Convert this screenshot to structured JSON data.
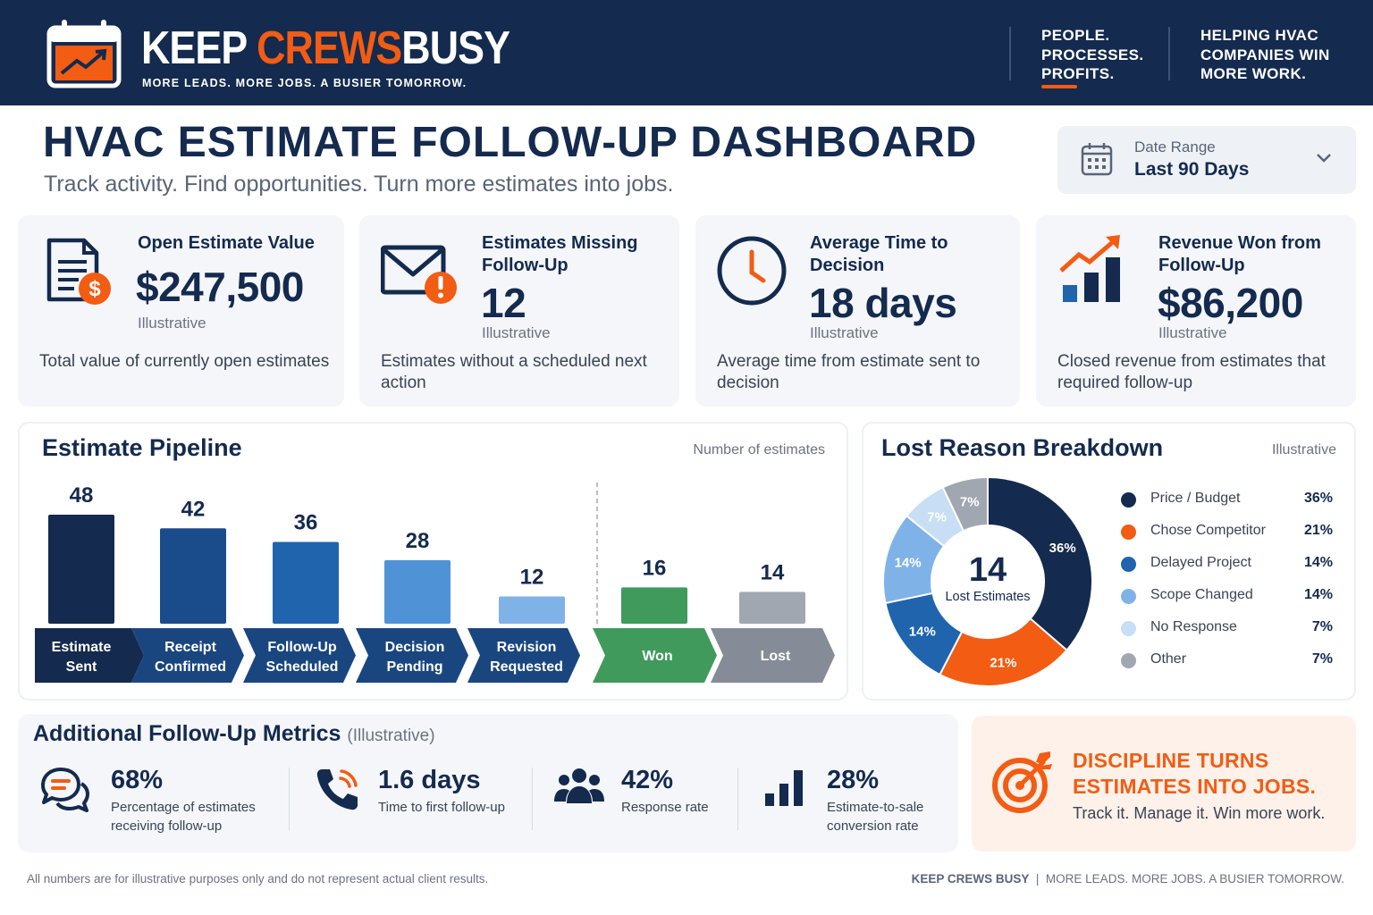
{
  "header": {
    "brand_part1": "KEEP ",
    "brand_part2": "CREWS",
    "brand_part3": "BUSY",
    "tagline": "MORE LEADS. MORE JOBS. A BUSIER TOMORROW.",
    "block1": [
      "PEOPLE.",
      "PROCESSES.",
      "PROFITS."
    ],
    "block2": [
      "HELPING HVAC",
      "COMPANIES WIN",
      "MORE WORK."
    ]
  },
  "title": "HVAC ESTIMATE FOLLOW-UP DASHBOARD",
  "subtitle": "Track activity. Find opportunities. Turn more estimates into jobs.",
  "date_range": {
    "label": "Date Range",
    "value": "Last 90 Days"
  },
  "kpis": [
    {
      "label": "Open Estimate Value",
      "value": "$247,500",
      "note": "Illustrative",
      "desc": "Total value of currently open estimates"
    },
    {
      "label": "Estimates Missing Follow-Up",
      "value": "12",
      "note": "Illustrative",
      "desc": "Estimates without a scheduled next action"
    },
    {
      "label": "Average Time to Decision",
      "value": "18 days",
      "note": "Illustrative",
      "desc": "Average time from estimate sent to decision"
    },
    {
      "label": "Revenue Won from Follow-Up",
      "value": "$86,200",
      "note": "Illustrative",
      "desc": "Closed revenue from estimates that required follow-up"
    }
  ],
  "pipeline": {
    "title": "Estimate Pipeline",
    "note": "Number of estimates"
  },
  "lost": {
    "title": "Lost Reason Breakdown",
    "note": "Illustrative",
    "center_value": "14",
    "center_label": "Lost Estimates"
  },
  "chart_data": [
    {
      "type": "bar",
      "categories": [
        "Estimate Sent",
        "Receipt Confirmed",
        "Follow-Up Scheduled",
        "Decision Pending",
        "Revision Requested",
        "Won",
        "Lost"
      ],
      "values": [
        48,
        42,
        36,
        28,
        12,
        16,
        14
      ],
      "colors": [
        "#142a4e",
        "#1a4c8c",
        "#1f64ad",
        "#4f93d6",
        "#7fb3e8",
        "#3f9a5c",
        "#a1a7b1"
      ],
      "title": "Estimate Pipeline",
      "ylabel": "Number of estimates",
      "ylim": [
        0,
        50
      ],
      "grid": false
    },
    {
      "type": "pie",
      "title": "Lost Reason Breakdown",
      "labels": [
        "Price / Budget",
        "Chose Competitor",
        "Delayed Project",
        "Scope Changed",
        "No Response",
        "Other"
      ],
      "values": [
        36,
        21,
        14,
        14,
        7,
        7
      ],
      "display": [
        "36%",
        "21%",
        "14%",
        "14%",
        "7%",
        "7%"
      ],
      "colors": [
        "#142a4e",
        "#f25c13",
        "#1f64ad",
        "#7fb3e8",
        "#c8def5",
        "#a1a7b1"
      ],
      "legend": "right"
    }
  ],
  "metrics": {
    "title": "Additional Follow-Up Metrics",
    "title_note": "(Illustrative)",
    "items": [
      {
        "value": "68%",
        "desc": [
          "Percentage of estimates",
          "receiving follow-up"
        ],
        "icon": "chat-icon"
      },
      {
        "value": "1.6 days",
        "desc": [
          "Time to first follow-up"
        ],
        "icon": "phone-icon"
      },
      {
        "value": "42%",
        "desc": [
          "Response rate"
        ],
        "icon": "people-icon"
      },
      {
        "value": "28%",
        "desc": [
          "Estimate-to-sale",
          "conversion rate"
        ],
        "icon": "bar-chart-icon"
      }
    ]
  },
  "callout": {
    "head1": "DISCIPLINE TURNS",
    "head2": "ESTIMATES INTO JOBS.",
    "sub": "Track it. Manage it. Win more work."
  },
  "footer": {
    "disclaimer": "All numbers are for illustrative purposes only and do not represent actual client results.",
    "brand": "KEEP CREWS BUSY",
    "sep": "|",
    "tagline": "MORE LEADS. MORE JOBS. A BUSIER TOMORROW."
  },
  "colors": {
    "navy": "#142a4e",
    "orange": "#f25c13",
    "green": "#3f9a5c"
  }
}
